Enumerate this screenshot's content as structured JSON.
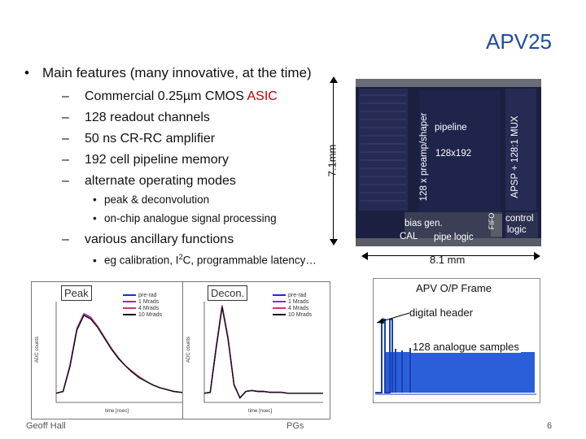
{
  "title": "APV25",
  "main_bullet": "Main features (many innovative, at the time)",
  "features": [
    {
      "dash": "–",
      "text": "Commercial 0.25µm CMOS ",
      "highlight": "ASIC"
    },
    {
      "dash": "–",
      "text": "128 readout channels"
    },
    {
      "dash": "–",
      "text": "50 ns CR-RC amplifier"
    },
    {
      "dash": "–",
      "text": "192 cell pipeline memory"
    },
    {
      "dash": "–",
      "text": "alternate operating modes"
    }
  ],
  "modes": [
    {
      "dot": "•",
      "text": "peak & deconvolution"
    },
    {
      "dot": "•",
      "text": "on-chip analogue signal processing"
    }
  ],
  "ancillary": {
    "dash": "–",
    "text": "various ancillary functions"
  },
  "ancillary_sub": {
    "dot": "•",
    "text_pre": "eg calibration, I",
    "sup": "2",
    "text_post": "C, programmable latency…"
  },
  "die": {
    "height_label": "7.1mm",
    "width_label": "8.1 mm",
    "preamp": "128 x preamp/shaper",
    "pipeline": "pipeline",
    "cells": "128x192",
    "apsp": "APSP + 128:1 MUX",
    "fifo": "FIFO",
    "bias": "bias gen.",
    "cal": "CAL",
    "pipe_logic": "pipe logic",
    "control": "control",
    "logic": "logic"
  },
  "frame": {
    "title": "APV O/P Frame",
    "header": "digital header",
    "samples": "128 analogue samples"
  },
  "plots": [
    {
      "label": "Peak",
      "ylabel": "ADC counts",
      "xlabel": "time [nsec]"
    },
    {
      "label": "Decon.",
      "ylabel": "ADC counts",
      "xlabel": "time [nsec]"
    }
  ],
  "legend": [
    "pre-rad",
    "1 Mrads",
    "4 Mrads",
    "10 Mrads"
  ],
  "legend_colors": [
    "#1f2bd6",
    "#8a2be2",
    "#d6336c",
    "#111111"
  ],
  "footer": {
    "author": "Geoff Hall",
    "center": "PGs",
    "page": "6"
  },
  "chart_data": [
    {
      "type": "line",
      "title": "Peak",
      "xlabel": "time [nsec]",
      "ylabel": "ADC counts",
      "ylim": [
        -10,
        100
      ],
      "x": [
        0,
        15,
        30,
        45,
        60,
        75,
        90,
        105,
        120,
        135,
        150,
        165,
        180,
        195,
        210,
        225,
        240,
        255,
        270,
        285,
        300
      ],
      "series": [
        {
          "name": "pre-rad",
          "values": [
            0,
            2,
            30,
            70,
            86,
            82,
            72,
            60,
            48,
            38,
            30,
            23,
            18,
            13,
            9,
            6,
            4,
            2,
            1,
            0,
            0
          ]
        },
        {
          "name": "1 Mrads",
          "values": [
            0,
            2,
            31,
            71,
            87,
            83,
            73,
            61,
            49,
            38,
            30,
            23,
            18,
            13,
            9,
            6,
            4,
            2,
            1,
            0,
            0
          ]
        },
        {
          "name": "4 Mrads",
          "values": [
            0,
            2,
            30,
            70,
            86,
            82,
            73,
            61,
            49,
            39,
            30,
            24,
            18,
            13,
            9,
            6,
            4,
            2,
            1,
            0,
            0
          ]
        },
        {
          "name": "10 Mrads",
          "values": [
            0,
            2,
            29,
            69,
            85,
            81,
            72,
            60,
            48,
            38,
            30,
            23,
            17,
            13,
            9,
            6,
            4,
            2,
            1,
            0,
            0
          ]
        }
      ]
    },
    {
      "type": "line",
      "title": "Decon.",
      "xlabel": "time [nsec]",
      "ylabel": "ADC counts",
      "ylim": [
        -10,
        100
      ],
      "x": [
        0,
        15,
        30,
        45,
        60,
        75,
        90,
        105,
        120,
        135,
        150,
        165,
        180,
        195,
        210,
        225,
        240,
        255,
        270,
        285,
        300
      ],
      "series": [
        {
          "name": "pre-rad",
          "values": [
            0,
            1,
            50,
            95,
            60,
            10,
            -5,
            2,
            3,
            2,
            2,
            1,
            1,
            1,
            0,
            0,
            0,
            0,
            0,
            0,
            0
          ]
        },
        {
          "name": "1 Mrads",
          "values": [
            0,
            1,
            51,
            96,
            61,
            10,
            -5,
            2,
            3,
            2,
            2,
            1,
            1,
            1,
            0,
            0,
            0,
            0,
            0,
            0,
            0
          ]
        },
        {
          "name": "4 Mrads",
          "values": [
            0,
            1,
            50,
            95,
            60,
            10,
            -5,
            2,
            3,
            2,
            2,
            1,
            1,
            1,
            0,
            0,
            0,
            0,
            0,
            0,
            0
          ]
        },
        {
          "name": "10 Mrads",
          "values": [
            0,
            1,
            49,
            94,
            59,
            9,
            -5,
            2,
            3,
            2,
            2,
            1,
            1,
            1,
            0,
            0,
            0,
            0,
            0,
            0,
            0
          ]
        }
      ]
    }
  ]
}
